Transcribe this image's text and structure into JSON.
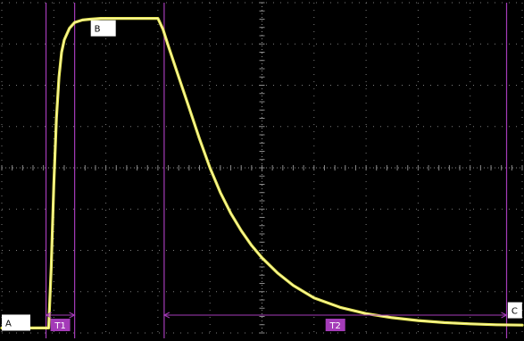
{
  "chart_data": {
    "type": "line",
    "title": "",
    "xlabel": "",
    "ylabel": "",
    "grid": true,
    "colors": {
      "background": "#000000",
      "trace": "#f2f25a",
      "grid": "#8a8a8a",
      "marker": "#a43bb8",
      "label_box": "#ffffff"
    },
    "xlim": [
      0,
      10
    ],
    "ylim": [
      0,
      8
    ],
    "grid_divisions": {
      "x": 10,
      "y": 8
    },
    "series": [
      {
        "x": [
          0.0,
          0.9,
          0.95,
          1.0,
          1.05,
          1.1,
          1.15,
          1.2,
          1.3,
          1.4,
          1.55,
          1.7,
          1.9,
          2.2,
          2.6,
          3.0,
          3.1,
          3.2,
          3.4,
          3.6,
          3.8,
          4.0,
          4.2,
          4.4,
          4.6,
          4.8,
          5.0,
          5.3,
          5.6,
          6.0,
          6.5,
          7.0,
          7.5,
          8.0,
          8.5,
          9.0,
          9.5,
          10.0
        ],
        "y": [
          0.12,
          0.12,
          1.6,
          3.6,
          5.2,
          6.2,
          6.8,
          7.1,
          7.38,
          7.52,
          7.58,
          7.6,
          7.62,
          7.62,
          7.62,
          7.62,
          7.35,
          6.95,
          6.2,
          5.45,
          4.7,
          4.0,
          3.4,
          2.9,
          2.48,
          2.12,
          1.82,
          1.45,
          1.15,
          0.85,
          0.62,
          0.47,
          0.37,
          0.3,
          0.25,
          0.22,
          0.2,
          0.19
        ]
      }
    ],
    "markers": {
      "vertical_lines_x": [
        0.85,
        1.4,
        3.12,
        9.7
      ],
      "intervals": [
        {
          "label": "T1",
          "from": 0.85,
          "to": 1.4
        },
        {
          "label": "T2",
          "from": 3.12,
          "to": 9.7
        }
      ]
    },
    "annotations": [
      {
        "label": "A",
        "x": 0.25,
        "y": 0.25
      },
      {
        "label": "B",
        "x": 1.95,
        "y": 7.38
      },
      {
        "label": "C",
        "x": 9.86,
        "y": 0.55
      }
    ]
  }
}
